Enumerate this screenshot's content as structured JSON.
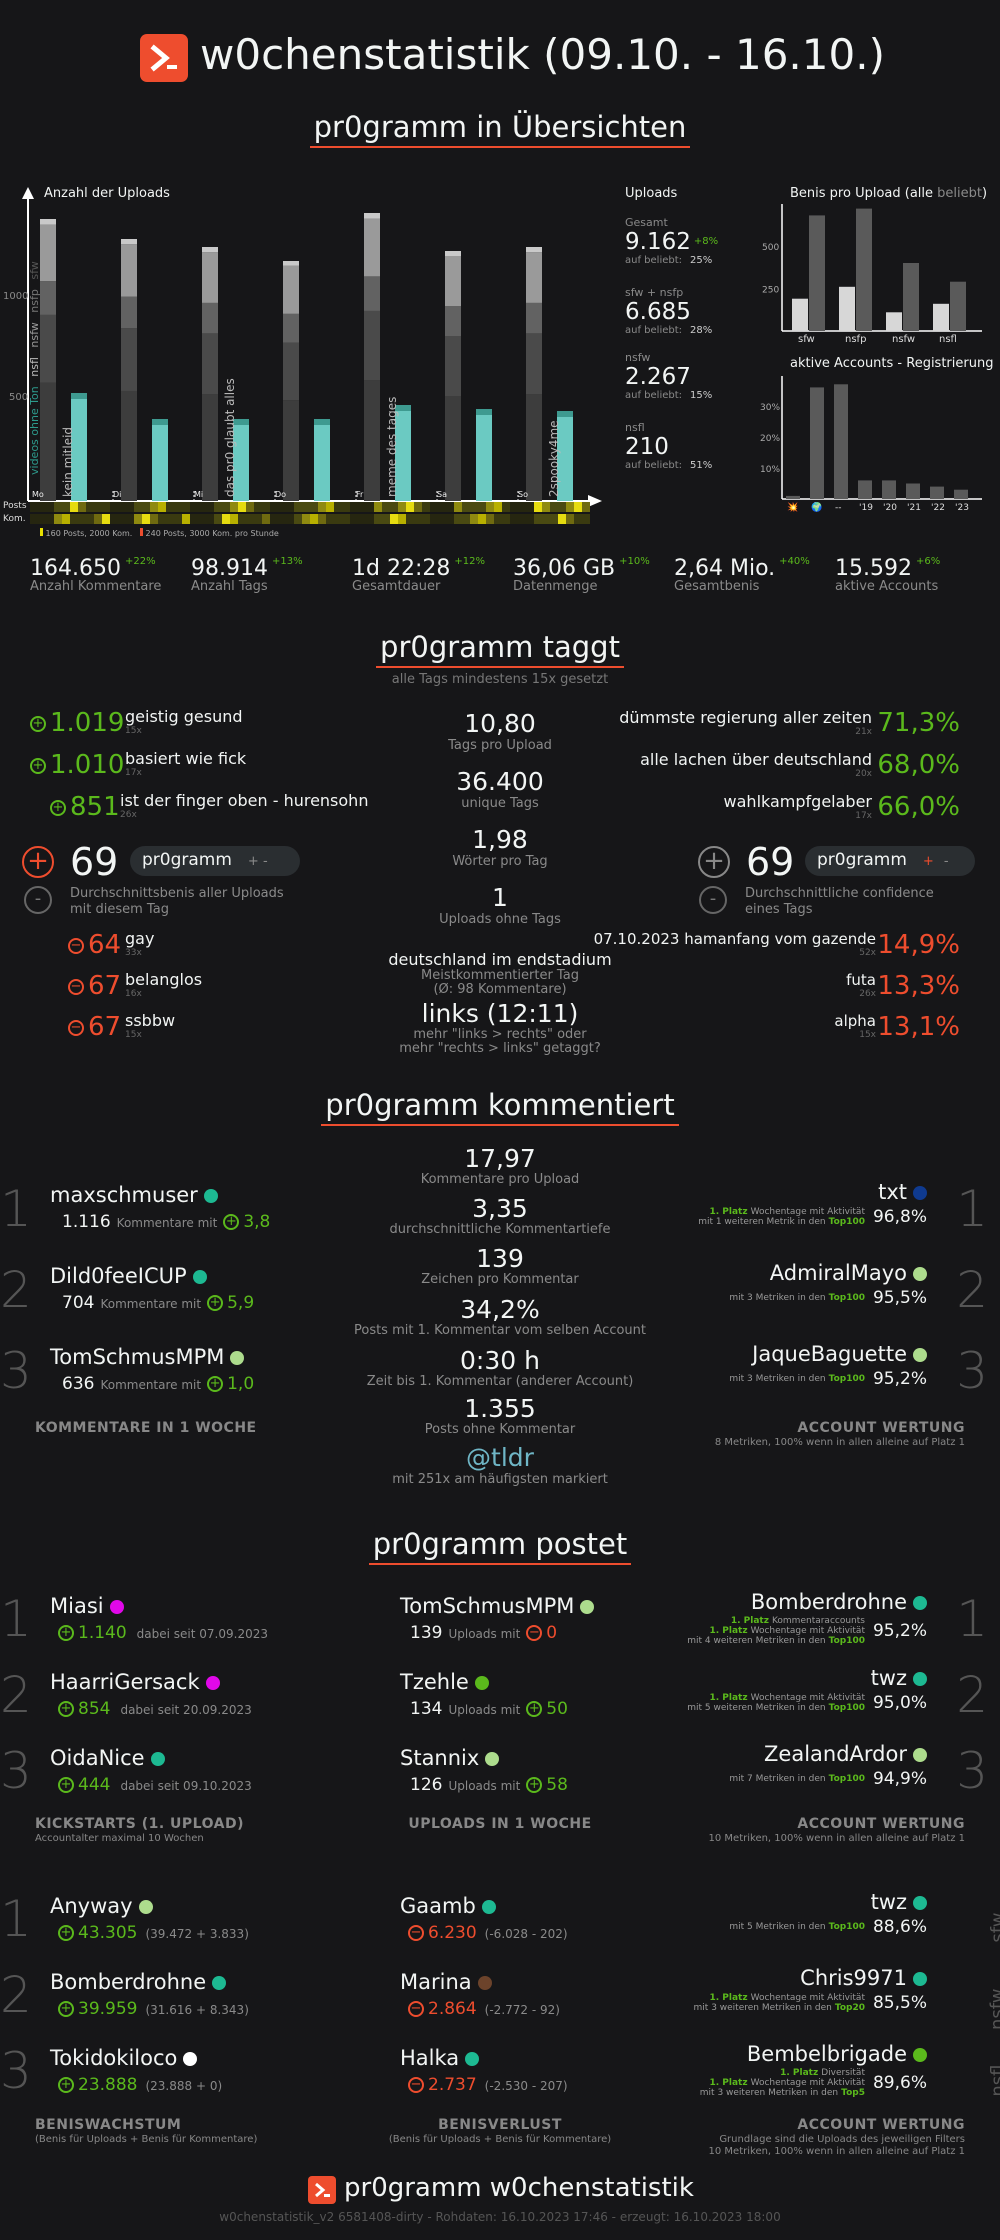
{
  "header": {
    "title": "w0chenstatistik (09.10. - 16.10.)",
    "subtitle": "pr0gramm in Übersichten"
  },
  "uploads_chart": {
    "title": "Anzahl der Uploads",
    "y_ticks": [
      "1000",
      "500"
    ],
    "days": [
      "Mo",
      "Di",
      "Mi",
      "Do",
      "Fr",
      "Sa",
      "So"
    ],
    "day_notes": [
      "kein mitleid",
      "",
      "das pr0 glaubt alles",
      "",
      "meme des tages",
      "",
      "2spooky4me"
    ],
    "vert_labels": [
      "videos ohne Ton",
      "nsfl",
      "nsfw",
      "nsfp",
      "sfw"
    ],
    "row_labels": [
      "Posts",
      "Kom."
    ],
    "legend": [
      "160 Posts, 2000 Kom.",
      "240 Posts, 3000 Kom. pro Stunde"
    ]
  },
  "chart_data": [
    {
      "type": "bar",
      "title": "Anzahl der Uploads",
      "categories": [
        "Mo",
        "Di",
        "Mi",
        "Do",
        "Fr",
        "Sa",
        "So"
      ],
      "series": [
        {
          "name": "Uploads",
          "values": [
            1410,
            1310,
            1270,
            1200,
            1440,
            1250,
            1270
          ]
        },
        {
          "name": "nsfw",
          "values": [
            540,
            410,
            410,
            410,
            480,
            460,
            450
          ]
        }
      ]
    },
    {
      "type": "bar",
      "title": "Benis pro Upload (alle beliebt)",
      "categories": [
        "sfw",
        "nsfp",
        "nsfw",
        "nsfl"
      ],
      "series": [
        {
          "name": "alle",
          "values": [
            190,
            260,
            110,
            160
          ]
        },
        {
          "name": "beliebt",
          "values": [
            680,
            720,
            400,
            290
          ]
        }
      ],
      "yticks": [
        "500",
        "250"
      ]
    },
    {
      "type": "bar",
      "title": "aktive Accounts - Registrierung",
      "categories": [
        "💥",
        "🌍",
        "--",
        "'19",
        "'20",
        "'21",
        "'22",
        "'23"
      ],
      "values": [
        1,
        36,
        37,
        6,
        6,
        5,
        4,
        3
      ],
      "yticks": [
        "30%",
        "20%",
        "10%"
      ]
    }
  ],
  "upload_stats": {
    "title": "Uploads",
    "items": [
      {
        "label": "Gesamt",
        "value": "9.162",
        "delta": "+8%",
        "sub": "auf beliebt:",
        "pct": "25%"
      },
      {
        "label": "sfw + nsfp",
        "value": "6.685",
        "delta": "",
        "sub": "auf beliebt:",
        "pct": "28%"
      },
      {
        "label": "nsfw",
        "value": "2.267",
        "delta": "",
        "sub": "auf beliebt:",
        "pct": "15%"
      },
      {
        "label": "nsfl",
        "value": "210",
        "delta": "",
        "sub": "auf beliebt:",
        "pct": "51%"
      }
    ]
  },
  "benis_chart": {
    "title_a": "Benis pro Upload (alle",
    "title_b": "beliebt",
    ")": ")"
  },
  "accounts_chart": {
    "title": "aktive Accounts - Registrierung"
  },
  "overview": [
    {
      "value": "164.650",
      "delta": "+22%",
      "label": "Anzahl Kommentare"
    },
    {
      "value": "98.914",
      "delta": "+13%",
      "label": "Anzahl Tags"
    },
    {
      "value": "1d 22:28",
      "delta": "+12%",
      "label": "Gesamtdauer"
    },
    {
      "value": "36,06 GB",
      "delta": "+10%",
      "label": "Datenmenge"
    },
    {
      "value": "2,64 Mio.",
      "delta": "+40%",
      "label": "Gesamtbenis"
    },
    {
      "value": "15.592",
      "delta": "+6%",
      "label": "aktive Accounts"
    }
  ],
  "tags": {
    "title": "pr0gramm taggt",
    "subtitle": "alle Tags mindestens 15x gesetzt",
    "top": [
      {
        "score": "1.019",
        "tag": "geistig gesund",
        "count": "15x"
      },
      {
        "score": "1.010",
        "tag": "basiert wie fick",
        "count": "17x"
      },
      {
        "score": "851",
        "tag": "ist der finger oben - hurensohn",
        "count": "26x"
      }
    ],
    "bottom": [
      {
        "score": "64",
        "tag": "gay",
        "count": "33x"
      },
      {
        "score": "67",
        "tag": "belanglos",
        "count": "16x"
      },
      {
        "score": "67",
        "tag": "ssbbw",
        "count": "15x"
      }
    ],
    "avg_benis": {
      "value": "69",
      "pill": "pr0gramm",
      "desc1": "Durchschnittsbenis aller Uploads",
      "desc2": "mit diesem Tag"
    },
    "center": [
      {
        "value": "10,80",
        "label": "Tags pro Upload"
      },
      {
        "value": "36.400",
        "label": "unique Tags"
      },
      {
        "value": "1,98",
        "label": "Wörter pro Tag"
      },
      {
        "value": "1",
        "label": "Uploads ohne Tags"
      }
    ],
    "most_commented": {
      "tag": "deutschland im endstadium",
      "l1": "Meistkommentierter Tag",
      "l2": "(Ø: 98 Kommentare)"
    },
    "links": {
      "value": "links (12:11)",
      "l1": "mehr \"links > rechts\" oder",
      "l2": "mehr \"rechts > links\" getaggt?"
    },
    "conf_top": [
      {
        "tag": "dümmste regierung aller zeiten",
        "count": "21x",
        "pct": "71,3%"
      },
      {
        "tag": "alle lachen über deutschland",
        "count": "20x",
        "pct": "68,0%"
      },
      {
        "tag": "wahlkampfgelaber",
        "count": "17x",
        "pct": "66,0%"
      }
    ],
    "avg_conf": {
      "value": "69",
      "pill": "pr0gramm",
      "desc1": "Durchschnittliche confidence",
      "desc2": "eines Tags"
    },
    "conf_bottom": [
      {
        "tag": "07.10.2023 hamanfang vom gazende",
        "count": "52x",
        "pct": "14,9%"
      },
      {
        "tag": "futa",
        "count": "26x",
        "pct": "13,3%"
      },
      {
        "tag": "alpha",
        "count": "15x",
        "pct": "13,1%"
      }
    ]
  },
  "comments": {
    "title": "pr0gramm kommentiert",
    "users": [
      {
        "rank": "1",
        "name": "maxschmuser",
        "count": "1.116",
        "txt": "Kommentare mit",
        "score": "3,8"
      },
      {
        "rank": "2",
        "name": "Dild0feeICUP",
        "count": "704",
        "txt": "Kommentare mit",
        "score": "5,9"
      },
      {
        "rank": "3",
        "name": "TomSchmusMPM",
        "count": "636",
        "txt": "Kommentare mit",
        "score": "1,0"
      }
    ],
    "footer_left": "KOMMENTARE IN 1 WOCHE",
    "center": [
      {
        "value": "17,97",
        "label": "Kommentare pro Upload"
      },
      {
        "value": "3,35",
        "label": "durchschnittliche Kommentartiefe"
      },
      {
        "value": "139",
        "label": "Zeichen pro Kommentar"
      },
      {
        "value": "34,2%",
        "label": "Posts mit 1. Kommentar vom selben Account"
      },
      {
        "value": "0:30 h",
        "label": "Zeit bis 1. Kommentar (anderer Account)"
      },
      {
        "value": "1.355",
        "label": "Posts ohne Kommentar"
      }
    ],
    "mention": {
      "value": "@tldr",
      "label": "mit 251x am häufigsten markiert"
    },
    "accounts": [
      {
        "rank": "1",
        "name": "txt",
        "l1a": "1. Platz",
        "l1b": "Wochentage mit Aktivität",
        "l2": "mit 1 weiteren Metrik in den",
        "top": "Top100",
        "pct": "96,8%"
      },
      {
        "rank": "2",
        "name": "AdmiralMayo",
        "l2": "mit 3 Metriken in den",
        "top": "Top100",
        "pct": "95,5%"
      },
      {
        "rank": "3",
        "name": "JaqueBaguette",
        "l2": "mit 3 Metriken in den",
        "top": "Top100",
        "pct": "95,2%"
      }
    ],
    "footer_right": "ACCOUNT WERTUNG",
    "footer_right_sub": "8 Metriken, 100% wenn in allen alleine auf Platz 1"
  },
  "posts": {
    "title": "pr0gramm postet",
    "kick": [
      {
        "rank": "1",
        "name": "Miasi",
        "score": "1.140",
        "since": "dabei seit 07.09.2023"
      },
      {
        "rank": "2",
        "name": "HaarriGersack",
        "score": "854",
        "since": "dabei seit 20.09.2023"
      },
      {
        "rank": "3",
        "name": "OidaNice",
        "score": "444",
        "since": "dabei seit 09.10.2023"
      }
    ],
    "kick_footer": "KICKSTARTS (1. UPLOAD)",
    "kick_sub": "Accountalter maximal 10 Wochen",
    "uploads": [
      {
        "name": "TomSchmusMPM",
        "count": "139",
        "txt": "Uploads mit",
        "score": "0"
      },
      {
        "name": "Tzehle",
        "count": "134",
        "txt": "Uploads mit",
        "score": "50"
      },
      {
        "name": "Stannix",
        "count": "126",
        "txt": "Uploads mit",
        "score": "58"
      }
    ],
    "uploads_footer": "UPLOADS IN 1 WOCHE",
    "accounts": [
      {
        "rank": "1",
        "name": "Bomberdrohne",
        "lines": [
          [
            "1. Platz",
            "Kommentaraccounts"
          ],
          [
            "1. Platz",
            "Wochentage mit Aktivität"
          ]
        ],
        "l2": "mit 4 weiteren Metriken in den",
        "top": "Top100",
        "pct": "95,2%"
      },
      {
        "rank": "2",
        "name": "twz",
        "lines": [
          [
            "1. Platz",
            "Wochentage mit Aktivität"
          ]
        ],
        "l2": "mit 5 weiteren Metriken in den",
        "top": "Top100",
        "pct": "95,0%"
      },
      {
        "rank": "3",
        "name": "ZealandArdor",
        "lines": [],
        "l2": "mit 7 Metriken in den",
        "top": "Top100",
        "pct": "94,9%"
      }
    ],
    "acc_footer": "ACCOUNT WERTUNG",
    "acc_sub": "10 Metriken, 100% wenn in allen alleine auf Platz 1"
  },
  "benis": {
    "grow": [
      {
        "rank": "1",
        "name": "Anyway",
        "score": "43.305",
        "detail": "(39.472 + 3.833)"
      },
      {
        "rank": "2",
        "name": "Bomberdrohne",
        "score": "39.959",
        "detail": "(31.616 + 8.343)"
      },
      {
        "rank": "3",
        "name": "Tokidokiloco",
        "score": "23.888",
        "detail": "(23.888 + 0)"
      }
    ],
    "grow_footer": "BENISWACHSTUM",
    "grow_sub": "(Benis für Uploads + Benis für Kommentare)",
    "loss": [
      {
        "name": "Gaamb",
        "score": "6.230",
        "detail": "(-6.028 - 202)"
      },
      {
        "name": "Marina",
        "score": "2.864",
        "detail": "(-2.772 - 92)"
      },
      {
        "name": "Halka",
        "score": "2.737",
        "detail": "(-2.530 - 207)"
      }
    ],
    "loss_footer": "BENISVERLUST",
    "loss_sub": "(Benis für Uploads + Benis für Kommentare)",
    "accounts": [
      {
        "side": "sfw",
        "name": "twz",
        "lines": [],
        "l2": "mit 5 Metriken in den",
        "top": "Top100",
        "pct": "88,6%"
      },
      {
        "side": "nsfw",
        "name": "Chris9971",
        "lines": [
          [
            "1. Platz",
            "Wochentage mit Aktivität"
          ]
        ],
        "l2": "mit 3 weiteren Metriken in den",
        "top": "Top20",
        "pct": "85,5%"
      },
      {
        "side": "nsfl",
        "name": "Bembelbrigade",
        "lines": [
          [
            "1. Platz",
            "Diversität"
          ],
          [
            "1. Platz",
            "Wochentage mit Aktivität"
          ]
        ],
        "l2": "mit 3 weiteren Metriken in den",
        "top": "Top5",
        "pct": "89,6%"
      }
    ],
    "acc_footer": "ACCOUNT WERTUNG",
    "acc_sub1": "Grundlage sind die Uploads des jeweiligen Filters",
    "acc_sub2": "10 Metriken, 100% wenn in allen alleine auf Platz 1"
  },
  "footer": {
    "title": "pr0gramm w0chenstatistik",
    "meta": "w0chenstatistik_v2 6581408-dirty - Rohdaten: 16.10.2023 17:46 - erzeugt: 16.10.2023 18:00"
  },
  "colors": {
    "accent": "#ee4d2e",
    "green": "#5bb91c",
    "teal": "#1db992",
    "mint": "#addc8d",
    "pink": "#e108e9",
    "brown": "#6c432b",
    "blue": "#0f3a8f",
    "white": "#ffffff"
  }
}
